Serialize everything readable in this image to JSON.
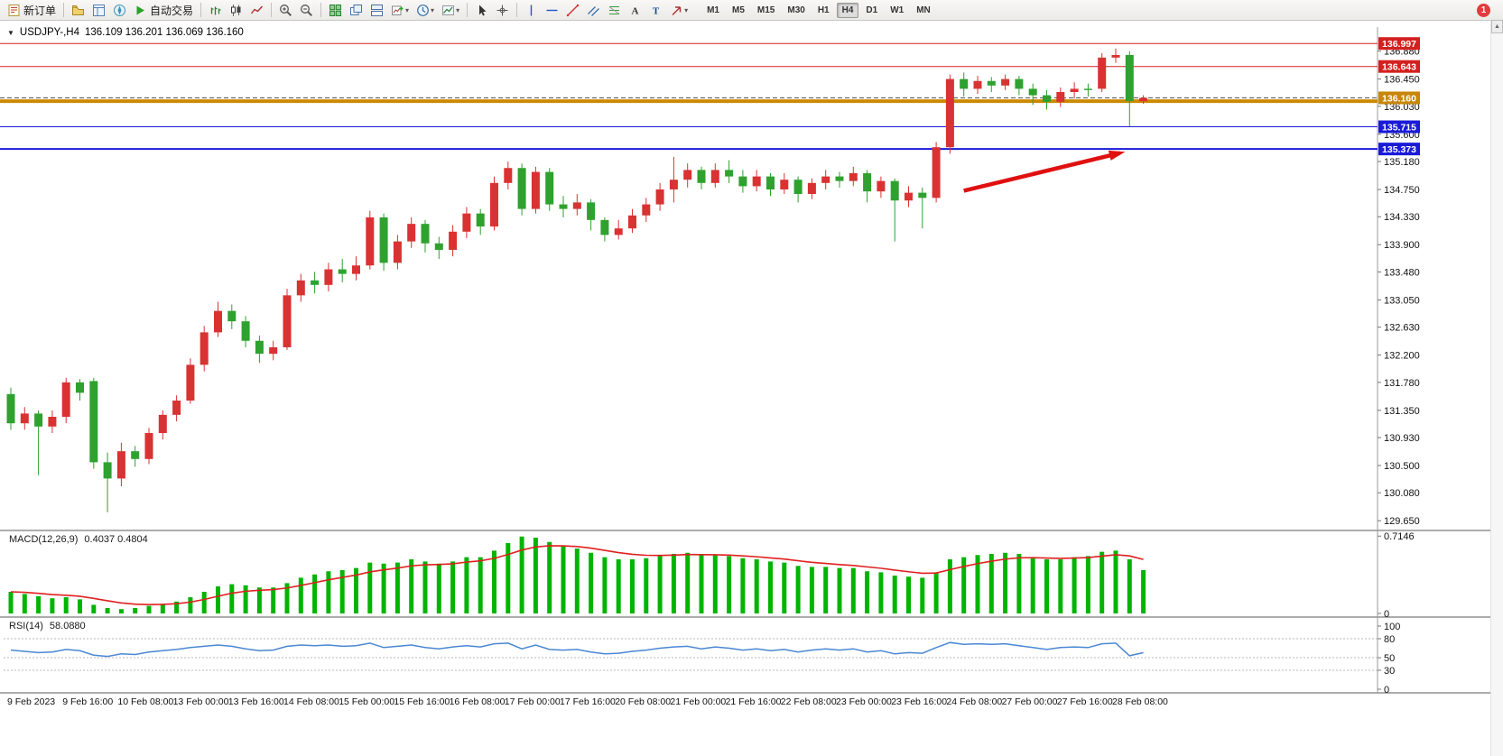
{
  "toolbar": {
    "items": [
      {
        "name": "new-order-button",
        "type": "button",
        "label": "新订单",
        "icon": "new-order"
      },
      {
        "type": "sep"
      },
      {
        "name": "profiles-button",
        "type": "icon",
        "icon": "profiles"
      },
      {
        "name": "market-watch-button",
        "type": "icon",
        "icon": "market-watch"
      },
      {
        "name": "navigator-button",
        "type": "icon",
        "icon": "navigator"
      },
      {
        "name": "autotrading-button",
        "type": "button",
        "label": "自动交易",
        "icon": "play"
      },
      {
        "type": "sep"
      },
      {
        "name": "bar-chart-button",
        "type": "icon",
        "icon": "bars"
      },
      {
        "name": "candlestick-chart-button",
        "type": "icon",
        "icon": "candles"
      },
      {
        "name": "line-chart-button",
        "type": "icon",
        "icon": "line"
      },
      {
        "type": "sep"
      },
      {
        "name": "zoom-in-button",
        "type": "icon",
        "icon": "zoom-in"
      },
      {
        "name": "zoom-out-button",
        "type": "icon",
        "icon": "zoom-out"
      },
      {
        "type": "sep"
      },
      {
        "name": "tile-windows-button",
        "type": "icon",
        "icon": "tile"
      },
      {
        "name": "cascade-windows-button",
        "type": "icon",
        "icon": "cascade"
      },
      {
        "name": "arrange-windows-button",
        "type": "icon",
        "icon": "arrange"
      },
      {
        "name": "new-chart-button",
        "type": "icon",
        "icon": "new-chart",
        "caret": true
      },
      {
        "name": "periods-button",
        "type": "icon",
        "icon": "clock",
        "caret": true
      },
      {
        "name": "templates-button",
        "type": "icon",
        "icon": "template",
        "caret": true
      },
      {
        "type": "sep"
      },
      {
        "name": "cursor-button",
        "type": "icon",
        "icon": "cursor"
      },
      {
        "name": "crosshair-button",
        "type": "icon",
        "icon": "crosshair"
      },
      {
        "type": "sep"
      },
      {
        "name": "vertical-line-button",
        "type": "icon",
        "icon": "vline"
      },
      {
        "name": "horizontal-line-button",
        "type": "icon",
        "icon": "hline"
      },
      {
        "name": "trendline-button",
        "type": "icon",
        "icon": "trend"
      },
      {
        "name": "channel-button",
        "type": "icon",
        "icon": "channel"
      },
      {
        "name": "fibonacci-button",
        "type": "icon",
        "icon": "fibo"
      },
      {
        "name": "text-button",
        "type": "icon",
        "icon": "textA"
      },
      {
        "name": "text-label-button",
        "type": "icon",
        "icon": "textT"
      },
      {
        "name": "arrows-button",
        "type": "icon",
        "icon": "arrow-tool",
        "caret": true
      }
    ],
    "timeframes": {
      "items": [
        "M1",
        "M5",
        "M15",
        "M30",
        "H1",
        "H4",
        "D1",
        "W1",
        "MN"
      ],
      "active": "H4"
    },
    "notification_count": "1"
  },
  "chart": {
    "collapse_icon": "▼",
    "symbol_period": "USDJPY-,H4",
    "ohlc": "136.109 136.201 136.069 136.160"
  },
  "chart_data": {
    "type": "candlestick",
    "symbol": "USDJPY-",
    "period": "H4",
    "price_range": {
      "min": 129.5,
      "max": 137.25
    },
    "price_axis": {
      "ticks": [
        "136.880",
        "136.450",
        "136.030",
        "135.600",
        "135.180",
        "134.750",
        "134.330",
        "133.900",
        "133.480",
        "133.050",
        "132.630",
        "132.200",
        "131.780",
        "131.350",
        "130.930",
        "130.500",
        "130.080",
        "129.650"
      ]
    },
    "time_axis": {
      "bars_per_label": 4,
      "labels": [
        "9 Feb 2023",
        "9 Feb 16:00",
        "10 Feb 08:00",
        "13 Feb 00:00",
        "13 Feb 16:00",
        "14 Feb 08:00",
        "15 Feb 00:00",
        "15 Feb 16:00",
        "16 Feb 08:00",
        "17 Feb 00:00",
        "17 Feb 16:00",
        "20 Feb 08:00",
        "21 Feb 00:00",
        "21 Feb 16:00",
        "22 Feb 08:00",
        "23 Feb 00:00",
        "23 Feb 16:00",
        "24 Feb 08:00",
        "27 Feb 00:00",
        "27 Feb 16:00",
        "28 Feb 08:00"
      ]
    },
    "candles": {
      "format": [
        "open",
        "high",
        "low",
        "close"
      ],
      "bull_color": "#d93232",
      "bear_color": "#2fa12f",
      "ohlc": [
        [
          131.6,
          131.7,
          131.05,
          131.15
        ],
        [
          131.15,
          131.4,
          131.05,
          131.3
        ],
        [
          131.3,
          131.35,
          130.35,
          131.1
        ],
        [
          131.1,
          131.35,
          131.0,
          131.25
        ],
        [
          131.25,
          131.85,
          131.15,
          131.78
        ],
        [
          131.78,
          131.83,
          131.5,
          131.62
        ],
        [
          131.8,
          131.85,
          130.45,
          130.55
        ],
        [
          130.55,
          130.7,
          129.78,
          130.3
        ],
        [
          130.3,
          130.85,
          130.18,
          130.72
        ],
        [
          130.72,
          130.8,
          130.48,
          130.6
        ],
        [
          130.6,
          131.08,
          130.52,
          131.0
        ],
        [
          131.0,
          131.35,
          130.9,
          131.28
        ],
        [
          131.28,
          131.58,
          131.18,
          131.5
        ],
        [
          131.5,
          132.15,
          131.45,
          132.05
        ],
        [
          132.05,
          132.65,
          131.95,
          132.55
        ],
        [
          132.55,
          133.02,
          132.48,
          132.88
        ],
        [
          132.88,
          132.98,
          132.6,
          132.72
        ],
        [
          132.72,
          132.8,
          132.32,
          132.42
        ],
        [
          132.42,
          132.5,
          132.08,
          132.22
        ],
        [
          132.22,
          132.42,
          132.12,
          132.32
        ],
        [
          132.32,
          133.22,
          132.28,
          133.12
        ],
        [
          133.12,
          133.45,
          133.02,
          133.35
        ],
        [
          133.35,
          133.48,
          133.15,
          133.28
        ],
        [
          133.28,
          133.62,
          133.18,
          133.52
        ],
        [
          133.52,
          133.68,
          133.32,
          133.45
        ],
        [
          133.45,
          133.72,
          133.35,
          133.58
        ],
        [
          133.58,
          134.42,
          133.52,
          134.32
        ],
        [
          134.32,
          134.38,
          133.5,
          133.62
        ],
        [
          133.62,
          134.05,
          133.52,
          133.95
        ],
        [
          133.95,
          134.32,
          133.85,
          134.22
        ],
        [
          134.22,
          134.28,
          133.78,
          133.92
        ],
        [
          133.92,
          134.02,
          133.68,
          133.82
        ],
        [
          133.82,
          134.2,
          133.72,
          134.1
        ],
        [
          134.1,
          134.48,
          134.0,
          134.38
        ],
        [
          134.38,
          134.45,
          134.05,
          134.18
        ],
        [
          134.18,
          134.95,
          134.12,
          134.85
        ],
        [
          134.85,
          135.18,
          134.75,
          135.08
        ],
        [
          135.08,
          135.15,
          134.35,
          134.45
        ],
        [
          134.45,
          135.1,
          134.38,
          135.02
        ],
        [
          135.02,
          135.08,
          134.42,
          134.52
        ],
        [
          134.52,
          134.65,
          134.32,
          134.45
        ],
        [
          134.45,
          134.68,
          134.35,
          134.55
        ],
        [
          134.55,
          134.6,
          134.12,
          134.28
        ],
        [
          134.28,
          134.32,
          133.95,
          134.05
        ],
        [
          134.05,
          134.28,
          133.98,
          134.15
        ],
        [
          134.15,
          134.45,
          134.08,
          134.35
        ],
        [
          134.35,
          134.62,
          134.25,
          134.52
        ],
        [
          134.52,
          134.85,
          134.42,
          134.75
        ],
        [
          134.75,
          135.25,
          134.55,
          134.9
        ],
        [
          134.9,
          135.15,
          134.78,
          135.05
        ],
        [
          135.05,
          135.1,
          134.75,
          134.85
        ],
        [
          134.85,
          135.15,
          134.78,
          135.05
        ],
        [
          135.05,
          135.2,
          134.85,
          134.95
        ],
        [
          134.95,
          135.05,
          134.7,
          134.8
        ],
        [
          134.8,
          135.05,
          134.72,
          134.95
        ],
        [
          134.95,
          135.0,
          134.65,
          134.75
        ],
        [
          134.75,
          135.0,
          134.68,
          134.9
        ],
        [
          134.9,
          134.95,
          134.55,
          134.68
        ],
        [
          134.68,
          134.92,
          134.6,
          134.85
        ],
        [
          134.85,
          135.05,
          134.75,
          134.95
        ],
        [
          134.95,
          135.02,
          134.78,
          134.88
        ],
        [
          134.88,
          135.1,
          134.8,
          135.0
        ],
        [
          135.0,
          135.05,
          134.55,
          134.72
        ],
        [
          134.72,
          134.95,
          134.62,
          134.88
        ],
        [
          134.88,
          134.92,
          133.95,
          134.58
        ],
        [
          134.58,
          134.8,
          134.48,
          134.7
        ],
        [
          134.7,
          134.78,
          134.15,
          134.62
        ],
        [
          134.62,
          135.48,
          134.55,
          135.4
        ],
        [
          135.4,
          136.52,
          135.3,
          136.45
        ],
        [
          136.45,
          136.55,
          136.18,
          136.3
        ],
        [
          136.3,
          136.5,
          136.22,
          136.42
        ],
        [
          136.42,
          136.48,
          136.25,
          136.35
        ],
        [
          136.35,
          136.52,
          136.28,
          136.45
        ],
        [
          136.45,
          136.5,
          136.2,
          136.3
        ],
        [
          136.3,
          136.38,
          136.05,
          136.2
        ],
        [
          136.2,
          136.28,
          135.98,
          136.1
        ],
        [
          136.1,
          136.32,
          136.02,
          136.25
        ],
        [
          136.25,
          136.4,
          136.15,
          136.3
        ],
        [
          136.3,
          136.38,
          136.18,
          136.28
        ],
        [
          136.3,
          136.85,
          136.25,
          136.78
        ],
        [
          136.78,
          136.92,
          136.7,
          136.82
        ],
        [
          136.82,
          136.88,
          135.72,
          136.11
        ],
        [
          136.109,
          136.201,
          136.069,
          136.16
        ]
      ]
    },
    "horizontal_lines": [
      {
        "price": 136.997,
        "color": "#d42020",
        "width": 1,
        "style": "solid"
      },
      {
        "price": 136.643,
        "color": "#d42020",
        "width": 1,
        "style": "solid"
      },
      {
        "price": 136.16,
        "color": "#555555",
        "width": 1,
        "style": "dashed"
      },
      {
        "price": 136.11,
        "color": "#cc8a00",
        "width": 4,
        "style": "solid"
      },
      {
        "price": 135.715,
        "color": "#1a1ad8",
        "width": 1,
        "style": "solid"
      },
      {
        "price": 135.373,
        "color": "#1a1ad8",
        "width": 2,
        "style": "solid"
      }
    ],
    "price_tags": [
      {
        "label": "136.997",
        "price": 136.997,
        "bg": "#d42020"
      },
      {
        "label": "136.643",
        "price": 136.643,
        "bg": "#d42020"
      },
      {
        "label": "136.160",
        "price": 136.16,
        "bg": "#c8860a"
      },
      {
        "label": "135.715",
        "price": 135.715,
        "bg": "#1a1ad8"
      },
      {
        "label": "135.373",
        "price": 135.373,
        "bg": "#1a1ad8"
      }
    ],
    "trend_arrow": {
      "from_bar": 69,
      "from_price": 134.73,
      "to_bar": 80.3,
      "to_price": 135.31,
      "color": "#e01010"
    },
    "indicators": [
      {
        "name": "MACD",
        "label": "MACD(12,26,9)",
        "values": "0.4037 0.4804",
        "histogram_color": "#00b400",
        "signal_color": "#e02020",
        "max": 0.7146,
        "axis_ticks": [
          "0.7146",
          "0"
        ],
        "histogram": [
          0.2,
          0.18,
          0.16,
          0.14,
          0.15,
          0.13,
          0.08,
          0.05,
          0.04,
          0.05,
          0.07,
          0.09,
          0.11,
          0.15,
          0.2,
          0.25,
          0.27,
          0.26,
          0.24,
          0.24,
          0.28,
          0.33,
          0.36,
          0.39,
          0.4,
          0.42,
          0.47,
          0.46,
          0.47,
          0.5,
          0.48,
          0.46,
          0.48,
          0.52,
          0.52,
          0.58,
          0.65,
          0.71,
          0.7,
          0.66,
          0.62,
          0.6,
          0.56,
          0.52,
          0.5,
          0.5,
          0.51,
          0.53,
          0.55,
          0.56,
          0.54,
          0.54,
          0.53,
          0.51,
          0.5,
          0.48,
          0.47,
          0.44,
          0.43,
          0.43,
          0.42,
          0.42,
          0.39,
          0.38,
          0.35,
          0.34,
          0.33,
          0.38,
          0.5,
          0.52,
          0.54,
          0.55,
          0.56,
          0.55,
          0.52,
          0.5,
          0.5,
          0.52,
          0.53,
          0.57,
          0.58,
          0.5,
          0.4
        ]
      },
      {
        "name": "RSI",
        "label": "RSI(14)",
        "values": "58.0880",
        "line_color": "#4a87d4",
        "levels": [
          80,
          50,
          30
        ],
        "axis_ticks": [
          "100",
          "80",
          "50",
          "30",
          "0"
        ],
        "line": [
          62,
          60,
          58,
          59,
          63,
          61,
          54,
          52,
          56,
          55,
          59,
          61,
          63,
          66,
          68,
          70,
          68,
          64,
          61,
          62,
          68,
          70,
          69,
          70,
          68,
          69,
          73,
          66,
          68,
          70,
          66,
          64,
          67,
          69,
          67,
          72,
          73,
          64,
          70,
          63,
          62,
          63,
          59,
          56,
          57,
          60,
          62,
          65,
          67,
          68,
          64,
          67,
          65,
          62,
          64,
          61,
          63,
          59,
          62,
          64,
          62,
          64,
          59,
          61,
          56,
          58,
          57,
          66,
          74,
          71,
          72,
          71,
          72,
          69,
          66,
          63,
          66,
          67,
          66,
          72,
          73,
          53,
          58.09
        ]
      }
    ]
  }
}
